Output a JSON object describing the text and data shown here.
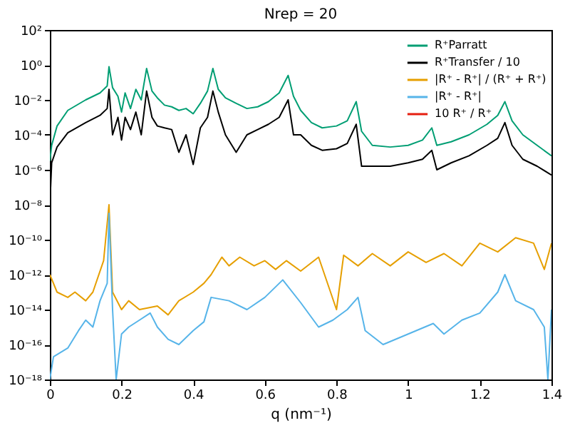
{
  "chart_data": {
    "type": "line",
    "title": "Nrep = 20",
    "xlabel": "q (nm⁻¹)",
    "log": "y",
    "legend": "top right",
    "grid": false,
    "line_style": "solid",
    "marker": "none",
    "xlim": [
      0,
      1.4
    ],
    "xticks": [
      0,
      0.2,
      0.4,
      0.6,
      0.8,
      1,
      1.2,
      1.4
    ],
    "ylim": [
      1e-18,
      100
    ],
    "yticks": [
      {
        "value": 100,
        "label": "10²"
      },
      {
        "value": 1,
        "label": "10⁰"
      },
      {
        "value": 0.01,
        "label": "10⁻²"
      },
      {
        "value": 0.0001,
        "label": "10⁻⁴"
      },
      {
        "value": 1e-06,
        "label": "10⁻⁶"
      },
      {
        "value": 1e-08,
        "label": "10⁻⁸"
      },
      {
        "value": 1e-10,
        "label": "10⁻¹⁰"
      },
      {
        "value": 1e-12,
        "label": "10⁻¹²"
      },
      {
        "value": 1e-14,
        "label": "10⁻¹⁴"
      },
      {
        "value": 1e-16,
        "label": "10⁻¹⁶"
      },
      {
        "value": 1e-18,
        "label": "10⁻¹⁸"
      }
    ],
    "series": [
      {
        "name": "R⁺Parratt",
        "color": "#009e73",
        "x": [
          0,
          0.005,
          0.02,
          0.05,
          0.1,
          0.14,
          0.16,
          0.165,
          0.175,
          0.19,
          0.2,
          0.21,
          0.225,
          0.24,
          0.255,
          0.27,
          0.285,
          0.3,
          0.32,
          0.34,
          0.36,
          0.38,
          0.4,
          0.42,
          0.44,
          0.455,
          0.47,
          0.49,
          0.52,
          0.55,
          0.58,
          0.61,
          0.64,
          0.665,
          0.68,
          0.7,
          0.73,
          0.76,
          0.8,
          0.83,
          0.855,
          0.87,
          0.9,
          0.95,
          1.0,
          1.04,
          1.066,
          1.08,
          1.12,
          1.17,
          1.22,
          1.25,
          1.27,
          1.29,
          1.32,
          1.36,
          1.4
        ],
        "values": [
          3.2e-06,
          2.5e-05,
          0.00032,
          0.0025,
          0.01,
          0.025,
          0.063,
          0.79,
          0.05,
          0.016,
          0.002,
          0.025,
          0.0032,
          0.04,
          0.01,
          0.63,
          0.032,
          0.013,
          0.005,
          0.004,
          0.0025,
          0.0032,
          0.0016,
          0.0063,
          0.032,
          0.63,
          0.04,
          0.013,
          0.0063,
          0.0032,
          0.004,
          0.0079,
          0.025,
          0.25,
          0.016,
          0.0025,
          0.0005,
          0.00025,
          0.00032,
          0.00063,
          0.0079,
          0.00016,
          2.5e-05,
          2e-05,
          2.5e-05,
          5e-05,
          0.00025,
          2.5e-05,
          4e-05,
          0.0001,
          0.0004,
          0.0013,
          0.0079,
          0.00063,
          0.0001,
          2.5e-05,
          6.3e-06
        ]
      },
      {
        "name": "R⁺Transfer / 10",
        "color": "#000000",
        "x": [
          0,
          0.005,
          0.02,
          0.05,
          0.1,
          0.14,
          0.16,
          0.165,
          0.175,
          0.19,
          0.2,
          0.21,
          0.225,
          0.24,
          0.255,
          0.27,
          0.285,
          0.3,
          0.32,
          0.34,
          0.36,
          0.38,
          0.4,
          0.42,
          0.44,
          0.455,
          0.47,
          0.49,
          0.52,
          0.55,
          0.58,
          0.61,
          0.64,
          0.665,
          0.68,
          0.7,
          0.73,
          0.76,
          0.8,
          0.83,
          0.855,
          0.87,
          0.9,
          0.95,
          1.0,
          1.04,
          1.066,
          1.08,
          1.12,
          1.17,
          1.22,
          1.25,
          1.27,
          1.29,
          1.32,
          1.36,
          1.4
        ],
        "values": [
          1e-08,
          2.5e-06,
          2e-05,
          0.00013,
          0.0005,
          0.0013,
          0.0032,
          0.04,
          0.0001,
          0.001,
          5e-05,
          0.001,
          0.0002,
          0.002,
          0.0001,
          0.032,
          0.001,
          0.00032,
          0.00025,
          0.0002,
          1e-05,
          0.0001,
          2e-06,
          0.00025,
          0.001,
          0.032,
          0.002,
          0.0001,
          1e-05,
          0.0001,
          0.0002,
          0.0004,
          0.001,
          0.01,
          0.0001,
          0.0001,
          2.5e-05,
          1.3e-05,
          1.6e-05,
          3.2e-05,
          0.0004,
          1.6e-06,
          1.6e-06,
          1.6e-06,
          2.5e-06,
          4e-06,
          1.3e-05,
          1e-06,
          2.5e-06,
          6.3e-06,
          2.5e-05,
          6.3e-05,
          0.0005,
          2.5e-05,
          4e-06,
          1.6e-06,
          5e-07
        ]
      },
      {
        "name": "|R⁺ - R⁺| / (R⁺ + R⁺)",
        "color": "#e69f00",
        "x": [
          0,
          0.02,
          0.05,
          0.07,
          0.1,
          0.12,
          0.15,
          0.165,
          0.175,
          0.2,
          0.22,
          0.25,
          0.3,
          0.33,
          0.36,
          0.4,
          0.43,
          0.45,
          0.48,
          0.5,
          0.53,
          0.57,
          0.6,
          0.63,
          0.66,
          0.7,
          0.75,
          0.8,
          0.82,
          0.86,
          0.9,
          0.95,
          1.0,
          1.05,
          1.1,
          1.15,
          1.2,
          1.25,
          1.3,
          1.35,
          1.38,
          1.4
        ],
        "values": [
          1e-12,
          1e-13,
          5e-14,
          1e-13,
          3.2e-14,
          1e-13,
          6.3e-12,
          1e-08,
          1e-13,
          1e-14,
          3.2e-14,
          1e-14,
          1.6e-14,
          5e-15,
          3.2e-14,
          1e-13,
          3.2e-13,
          1e-12,
          1e-11,
          3.2e-12,
          1e-11,
          3.2e-12,
          6.3e-12,
          2e-12,
          6.3e-12,
          1.6e-12,
          1e-11,
          1e-14,
          1.3e-11,
          3.2e-12,
          1.6e-11,
          3.2e-12,
          2e-11,
          5e-12,
          1.6e-11,
          3.2e-12,
          6.3e-11,
          2e-11,
          1.3e-10,
          6.3e-11,
          2e-12,
          6.3e-11
        ]
      },
      {
        "name": "|R⁺ - R⁺|",
        "color": "#56b4e9",
        "x": [
          0,
          0.01,
          0.05,
          0.08,
          0.1,
          0.12,
          0.14,
          0.16,
          0.165,
          0.175,
          0.185,
          0.2,
          0.22,
          0.25,
          0.28,
          0.3,
          0.33,
          0.36,
          0.4,
          0.43,
          0.45,
          0.5,
          0.55,
          0.6,
          0.65,
          0.7,
          0.75,
          0.79,
          0.83,
          0.86,
          0.88,
          0.93,
          1.0,
          1.07,
          1.1,
          1.15,
          1.2,
          1.25,
          1.27,
          1.3,
          1.35,
          1.38,
          1.39,
          1.4
        ],
        "values": [
          1e-18,
          2e-17,
          6.3e-17,
          6.3e-16,
          2.5e-15,
          1e-15,
          3.2e-14,
          3.2e-13,
          3.2e-09,
          1e-14,
          1e-18,
          4e-16,
          1e-15,
          2.5e-15,
          6.3e-15,
          1e-15,
          2e-16,
          1e-16,
          6.3e-16,
          2e-15,
          5e-14,
          3.2e-14,
          1e-14,
          5e-14,
          5e-13,
          2.5e-14,
          1e-15,
          2.5e-15,
          1e-14,
          5e-14,
          6.3e-16,
          1e-16,
          4e-16,
          1.6e-15,
          4e-16,
          2.5e-15,
          6.3e-15,
          1e-13,
          1e-12,
          3.2e-14,
          1e-14,
          1e-15,
          1e-18,
          1e-14
        ]
      },
      {
        "name": "10 R⁺ / R⁺",
        "color": "#e51e10"
      }
    ]
  }
}
